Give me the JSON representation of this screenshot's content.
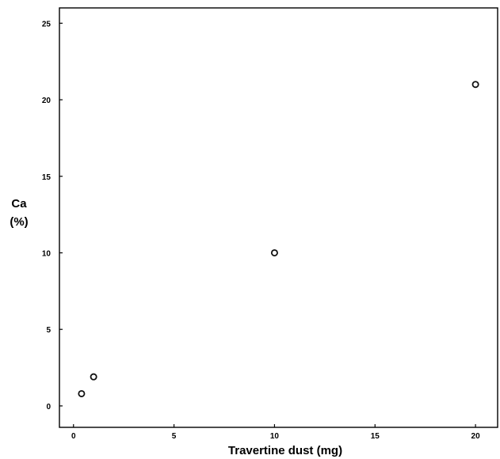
{
  "chart_data": {
    "type": "scatter",
    "xlabel": "Travertine dust (mg)",
    "ylabel_lines": [
      "Ca",
      "(%)"
    ],
    "xlim": [
      -0.7,
      21.1
    ],
    "ylim": [
      -1.4,
      26.0
    ],
    "x_ticks": [
      0,
      5,
      10,
      15,
      20
    ],
    "y_ticks": [
      0,
      5,
      10,
      15,
      20,
      25
    ],
    "points": [
      {
        "x": 0.4,
        "y": 0.8
      },
      {
        "x": 1.0,
        "y": 1.9
      },
      {
        "x": 10.0,
        "y": 10.0
      },
      {
        "x": 20.0,
        "y": 21.0
      }
    ],
    "grid": false,
    "marker": "open-circle",
    "colors": {
      "marker": "#111111",
      "axis": "#000000",
      "background": "#ffffff"
    }
  }
}
